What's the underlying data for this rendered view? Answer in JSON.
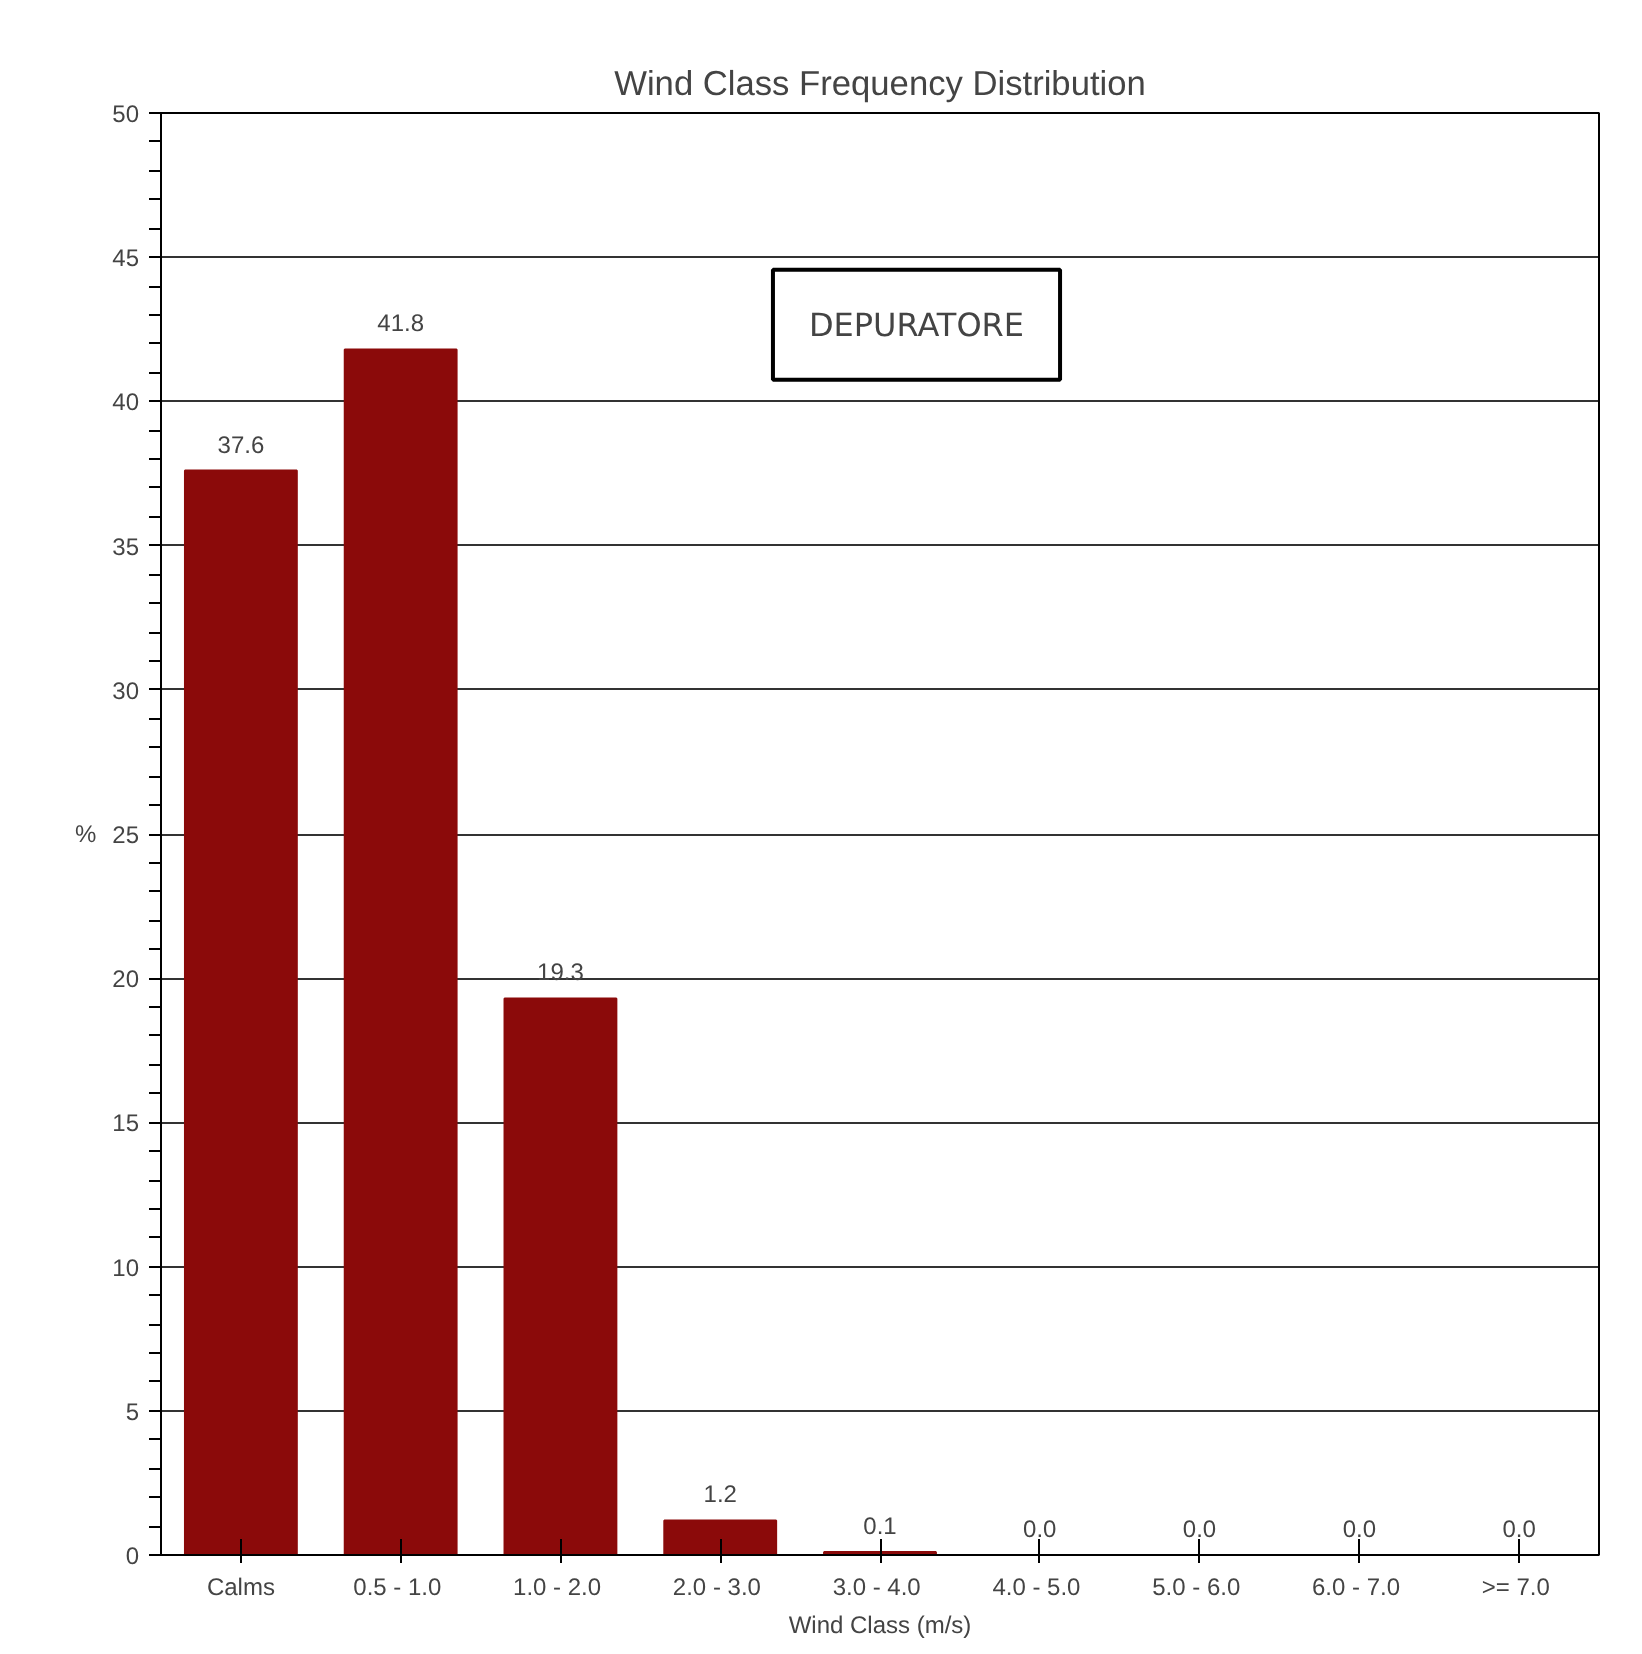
{
  "chart_data": {
    "type": "bar",
    "title": "Wind Class Frequency Distribution",
    "xlabel": "Wind Class (m/s)",
    "ylabel": "%",
    "categories": [
      "Calms",
      "0.5 -  1.0",
      "1.0 -  2.0",
      "2.0 -  3.0",
      "3.0 -  4.0",
      "4.0 -  5.0",
      "5.0 -  6.0",
      "6.0 -  7.0",
      ">=  7.0"
    ],
    "values": [
      37.6,
      41.8,
      19.3,
      1.2,
      0.1,
      0.0,
      0.0,
      0.0,
      0.0
    ],
    "value_labels": [
      "37.6",
      "41.8",
      "19.3",
      "1.2",
      "0.1",
      "0.0",
      "0.0",
      "0.0",
      "0.0"
    ],
    "color": "#8b0a0a",
    "ylim": [
      0,
      50
    ],
    "yticks": [
      0,
      {
        "value": 1,
        "label": null
      },
      {
        "value": 2,
        "label": null
      },
      {
        "value": 3,
        "label": null
      },
      {
        "value": 4,
        "label": null
      },
      5,
      {
        "value": 6,
        "label": null
      },
      {
        "value": 7,
        "label": null
      },
      {
        "value": 8,
        "label": null
      },
      {
        "value": 9,
        "label": null
      },
      10,
      {
        "value": 11,
        "label": null
      },
      {
        "value": 12,
        "label": null
      },
      {
        "value": 13,
        "label": null
      },
      {
        "value": 14,
        "label": null
      },
      15,
      {
        "value": 16,
        "label": null
      },
      {
        "value": 17,
        "label": null
      },
      {
        "value": 18,
        "label": null
      },
      {
        "value": 19,
        "label": null
      },
      20,
      {
        "value": 21,
        "label": null
      },
      {
        "value": 22,
        "label": null
      },
      {
        "value": 23,
        "label": null
      },
      {
        "value": 24,
        "label": null
      },
      25,
      {
        "value": 26,
        "label": null
      },
      {
        "value": 27,
        "label": null
      },
      {
        "value": 28,
        "label": null
      },
      {
        "value": 29,
        "label": null
      },
      30,
      {
        "value": 31,
        "label": null
      },
      {
        "value": 32,
        "label": null
      },
      {
        "value": 33,
        "label": null
      },
      {
        "value": 34,
        "label": null
      },
      35,
      {
        "value": 36,
        "label": null
      },
      {
        "value": 37,
        "label": null
      },
      {
        "value": 38,
        "label": null
      },
      {
        "value": 39,
        "label": null
      },
      40,
      {
        "value": 41,
        "label": null
      },
      {
        "value": 42,
        "label": null
      },
      {
        "value": 43,
        "label": null
      },
      {
        "value": 44,
        "label": null
      },
      45,
      {
        "value": 46,
        "label": null
      },
      {
        "value": 47,
        "label": null
      },
      {
        "value": 48,
        "label": null
      },
      {
        "value": 49,
        "label": null
      },
      50
    ],
    "grid": "y",
    "annotations": [
      "DEPURATORE"
    ]
  }
}
